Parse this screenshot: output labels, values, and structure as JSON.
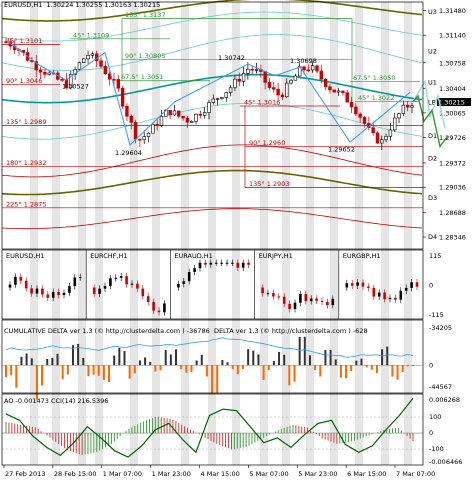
{
  "header": {
    "symbol": "EURUSD,H1",
    "ohlc": "1.30224  1.30255  1.30163  1.30215"
  },
  "colors": {
    "up_candle": "#000000",
    "down_candle": "#cc0000",
    "fib_green": "#339933",
    "fib_red": "#cc0000",
    "band_olive": "#666600",
    "band_teal": "#009999",
    "band_light": "#66cccc",
    "band_red": "#cc0000",
    "zigzag": "#3399ff",
    "forecast_green": "#339933",
    "forecast_cyan": "#99dddd",
    "delta_bar_pos": "#333333",
    "delta_bar_neg": "#ff6600",
    "cum_delta_line": "#3399ff",
    "cci_line": "#006600",
    "ao_up": "#339933",
    "ao_down": "#cc3333",
    "stripe": "#dcdcdc"
  },
  "main_chart": {
    "price_ticks": [
      "1.31480",
      "1.31140",
      "1.30758",
      "1.30404",
      "1.30065",
      "1.29726",
      "1.29372",
      "1.29036",
      "1.28688",
      "1.28346"
    ],
    "current_price": "1.30215",
    "pivot_labels": [
      "U3",
      "U2",
      "U1",
      "LB",
      "D1",
      "D2",
      "D3",
      "D4"
    ],
    "fib_labels_green": [
      "135° 1.3137",
      "45° 1.3109",
      "90° 1.30805",
      "67.5° 1.3051",
      "67.5° 1.3050",
      "45° 1.3022"
    ],
    "fib_labels_red": [
      "45° 1.3101",
      "90° 1.3046",
      "135° 1.2989",
      "180° 1.2932",
      "225° 1.2875",
      "45° 1.3016",
      "90° 1.2960",
      "135° 1.2903"
    ],
    "swing_labels": [
      "1.30742",
      "1.30698",
      "1.30527",
      "1.29604",
      "1.29652"
    ]
  },
  "mini_charts": {
    "titles": [
      "EURUSD,H1",
      "EURCHF,H1",
      "EURAUD,H1",
      "EURJPY,H1",
      "EURGBP,H1"
    ],
    "scale_ticks": [
      "115",
      "0",
      "-115"
    ]
  },
  "delta_panel": {
    "title_cum": "CUMULATIVE DELTA  ver 1.3 (© http://clusterdelta.com ) -36786",
    "title_delta": "DELTA  ver 1.3 (© http://clusterdelta.com ) -628",
    "ticks": [
      "-34205",
      "0",
      "-44567"
    ]
  },
  "osc_panel": {
    "title": "AO -0.001473  CCI(14) 216.5396",
    "ticks": [
      "0.006268",
      "100",
      "0",
      "-100",
      "-0.006466"
    ]
  },
  "time_axis": [
    "27 Feb 2013",
    "28 Feb 15:00",
    "1 Mar 07:00",
    "1 Mar 23:00",
    "4 Mar 15:00",
    "5 Mar 07:00",
    "5 Mar 23:00",
    "6 Mar 15:00",
    "7 Mar 07:00"
  ],
  "chart_data": [
    {
      "type": "candlestick",
      "title": "EURUSD,H1",
      "ylim": [
        1.2818,
        1.316
      ],
      "x": [
        "27 Feb 2013",
        "28 Feb 15:00",
        "1 Mar 07:00",
        "1 Mar 23:00",
        "4 Mar 15:00",
        "5 Mar 07:00",
        "5 Mar 23:00",
        "6 Mar 15:00",
        "7 Mar 07:00"
      ],
      "close_path": [
        1.3105,
        1.3098,
        1.3084,
        1.3071,
        1.3062,
        1.3053,
        1.3046,
        1.307,
        1.3088,
        1.3078,
        1.306,
        1.304,
        1.3002,
        1.2968,
        1.2978,
        1.2995,
        1.301,
        1.3002,
        1.2996,
        1.3006,
        1.3018,
        1.303,
        1.304,
        1.3055,
        1.307,
        1.306,
        1.304,
        1.303,
        1.3048,
        1.3066,
        1.307,
        1.3055,
        1.304,
        1.3032,
        1.302,
        1.3,
        1.2975,
        1.2966,
        1.299,
        1.301,
        1.3021
      ],
      "swing_points": [
        {
          "label": "1.30742",
          "value": 1.30742
        },
        {
          "label": "1.30698",
          "value": 1.30698
        },
        {
          "label": "1.30527",
          "value": 1.30527
        },
        {
          "label": "1.29604",
          "value": 1.29604
        },
        {
          "label": "1.29652",
          "value": 1.29652
        }
      ],
      "pivot_levels": {
        "U3": 1.3147,
        "U2": 1.3092,
        "U1": 1.3049,
        "LB": 1.30215,
        "D1": 1.2975,
        "D2": 1.2944,
        "D3": 1.2889,
        "D4": 1.2835
      }
    },
    {
      "type": "bar",
      "title": "CUMULATIVE DELTA / DELTA",
      "ylim": [
        -44567,
        34205
      ],
      "values": [
        -12000,
        8000,
        -18000,
        6000,
        -9000,
        14000,
        -6000,
        -20000,
        10000,
        -8000,
        5000,
        -4000,
        12000,
        -7000,
        9000,
        -15000,
        4000,
        -5000,
        11000,
        -9000,
        7000,
        -12000,
        15000,
        -6000,
        8000,
        -10000,
        6000,
        -4000,
        13000,
        -8000,
        -628
      ]
    },
    {
      "type": "line",
      "title": "AO / CCI(14)",
      "ylim": [
        -0.006466,
        0.006268
      ],
      "ao_values": [
        0.002,
        0.0015,
        0.001,
        -0.001,
        -0.003,
        -0.004,
        -0.0035,
        -0.002,
        0.0005,
        0.002,
        0.003,
        0.0025,
        0.001,
        -0.0005,
        -0.002,
        -0.003,
        -0.0025,
        -0.001,
        0.0005,
        0.0015,
        0.001,
        -0.001,
        -0.002,
        -0.0015,
        -0.0005,
        0.0005,
        0.001,
        -0.001473
      ],
      "cci_values": [
        120,
        80,
        -20,
        -90,
        -140,
        -60,
        40,
        -30,
        -110,
        -150,
        -80,
        20,
        60,
        -40,
        -120,
        110,
        150,
        140,
        40,
        -60,
        -30,
        -90,
        -10,
        60,
        80,
        -70,
        -120,
        -80,
        20,
        110,
        216.54
      ]
    }
  ]
}
